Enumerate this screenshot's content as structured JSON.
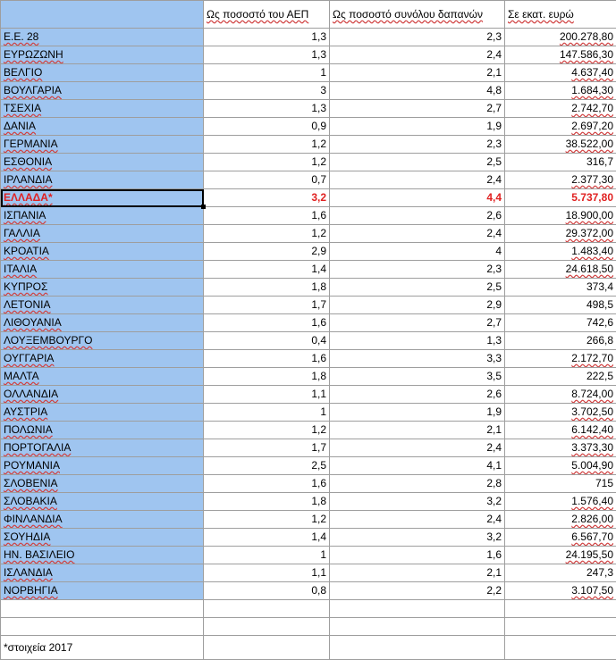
{
  "header": {
    "col_country": "",
    "col_gdp": "Ως ποσοστό του ΑΕΠ",
    "col_total": "Ως ποσοστό συνόλου δαπανών",
    "col_amount": "Σε εκατ. ευρώ"
  },
  "rows": [
    {
      "country": "Ε.Ε. 28",
      "gdp": "1,3",
      "total": "2,3",
      "amount": "200.278,80"
    },
    {
      "country": "ΕΥΡΩΖΩΝΗ",
      "gdp": "1,3",
      "total": "2,4",
      "amount": "147.586,30"
    },
    {
      "country": "ΒΕΛΓΙΟ",
      "gdp": "1",
      "total": "2,1",
      "amount": "4.637,40"
    },
    {
      "country": "ΒΟΥΛΓΑΡΙΑ",
      "gdp": "3",
      "total": "4,8",
      "amount": "1.684,30"
    },
    {
      "country": "ΤΣΕΧΙΑ",
      "gdp": "1,3",
      "total": "2,7",
      "amount": "2.742,70"
    },
    {
      "country": "ΔΑΝΙΑ",
      "gdp": "0,9",
      "total": "1,9",
      "amount": "2.697,20"
    },
    {
      "country": "ΓΕΡΜΑΝΙΑ",
      "gdp": "1,2",
      "total": "2,3",
      "amount": "38.522,00"
    },
    {
      "country": "ΕΣΘΟΝΙΑ",
      "gdp": "1,2",
      "total": "2,5",
      "amount": "316,7"
    },
    {
      "country": "ΙΡΛΑΝΔΙΑ",
      "gdp": "0,7",
      "total": "2,4",
      "amount": "2.377,30"
    },
    {
      "country": "ΕΛΛΑΔΑ*",
      "gdp": "3,2",
      "total": "4,4",
      "amount": "5.737,80"
    },
    {
      "country": "ΙΣΠΑΝΙΑ",
      "gdp": "1,6",
      "total": "2,6",
      "amount": "18.900,00"
    },
    {
      "country": "ΓΑΛΛΙΑ",
      "gdp": "1,2",
      "total": "2,4",
      "amount": "29.372,00"
    },
    {
      "country": "ΚΡΟΑΤΙΑ",
      "gdp": "2,9",
      "total": "4",
      "amount": "1.483,40"
    },
    {
      "country": "ΙΤΑΛΙΑ",
      "gdp": "1,4",
      "total": "2,3",
      "amount": "24.618,50"
    },
    {
      "country": "ΚΥΠΡΟΣ",
      "gdp": "1,8",
      "total": "2,5",
      "amount": "373,4"
    },
    {
      "country": "ΛΕΤΟΝΙΑ",
      "gdp": "1,7",
      "total": "2,9",
      "amount": "498,5"
    },
    {
      "country": "ΛΙΘΟΥΑΝΙΑ",
      "gdp": "1,6",
      "total": "2,7",
      "amount": "742,6"
    },
    {
      "country": "ΛΟΥΞΕΜΒΟΥΡΓΟ",
      "gdp": "0,4",
      "total": "1,3",
      "amount": "266,8"
    },
    {
      "country": "ΟΥΓΓΑΡΙΑ",
      "gdp": "1,6",
      "total": "3,3",
      "amount": "2.172,70"
    },
    {
      "country": "ΜΑΛΤΑ",
      "gdp": "1,8",
      "total": "3,5",
      "amount": "222,5"
    },
    {
      "country": "ΟΛΛΑΝΔΙΑ",
      "gdp": "1,1",
      "total": "2,6",
      "amount": "8.724,00"
    },
    {
      "country": "ΑΥΣΤΡΙΑ",
      "gdp": "1",
      "total": "1,9",
      "amount": "3.702,50"
    },
    {
      "country": "ΠΟΛΩΝΙΑ",
      "gdp": "1,2",
      "total": "2,1",
      "amount": "6.142,40"
    },
    {
      "country": "ΠΟΡΤΟΓΑΛΙΑ",
      "gdp": "1,7",
      "total": "2,4",
      "amount": "3.373,30"
    },
    {
      "country": "ΡΟΥΜΑΝΙΑ",
      "gdp": "2,5",
      "total": "4,1",
      "amount": "5.004,90"
    },
    {
      "country": "ΣΛΟΒΕΝΙΑ",
      "gdp": "1,6",
      "total": "2,8",
      "amount": "715"
    },
    {
      "country": "ΣΛΟΒΑΚΙΑ",
      "gdp": "1,8",
      "total": "3,2",
      "amount": "1.576,40"
    },
    {
      "country": "ΦΙΝΛΑΝΔΙΑ",
      "gdp": "1,2",
      "total": "2,4",
      "amount": "2.826,00"
    },
    {
      "country": "ΣΟΥΗΔΙΑ",
      "gdp": "1,4",
      "total": "3,2",
      "amount": "6.567,70"
    },
    {
      "country": "ΗΝ. ΒΑΣΙΛΕΙΟ",
      "gdp": "1",
      "total": "1,6",
      "amount": "24.195,50"
    },
    {
      "country": "ΙΣΛΑΝΔΙΑ",
      "gdp": "1,1",
      "total": "2,1",
      "amount": "247,3"
    },
    {
      "country": "ΝΟΡΒΗΓΙΑ",
      "gdp": "0,8",
      "total": "2,2",
      "amount": "3.107,50"
    }
  ],
  "highlight_row_index": 9,
  "highlight_color": "#e02020",
  "country_column_color": "#9fc5f0",
  "footnote": "*στοιχεία 2017"
}
